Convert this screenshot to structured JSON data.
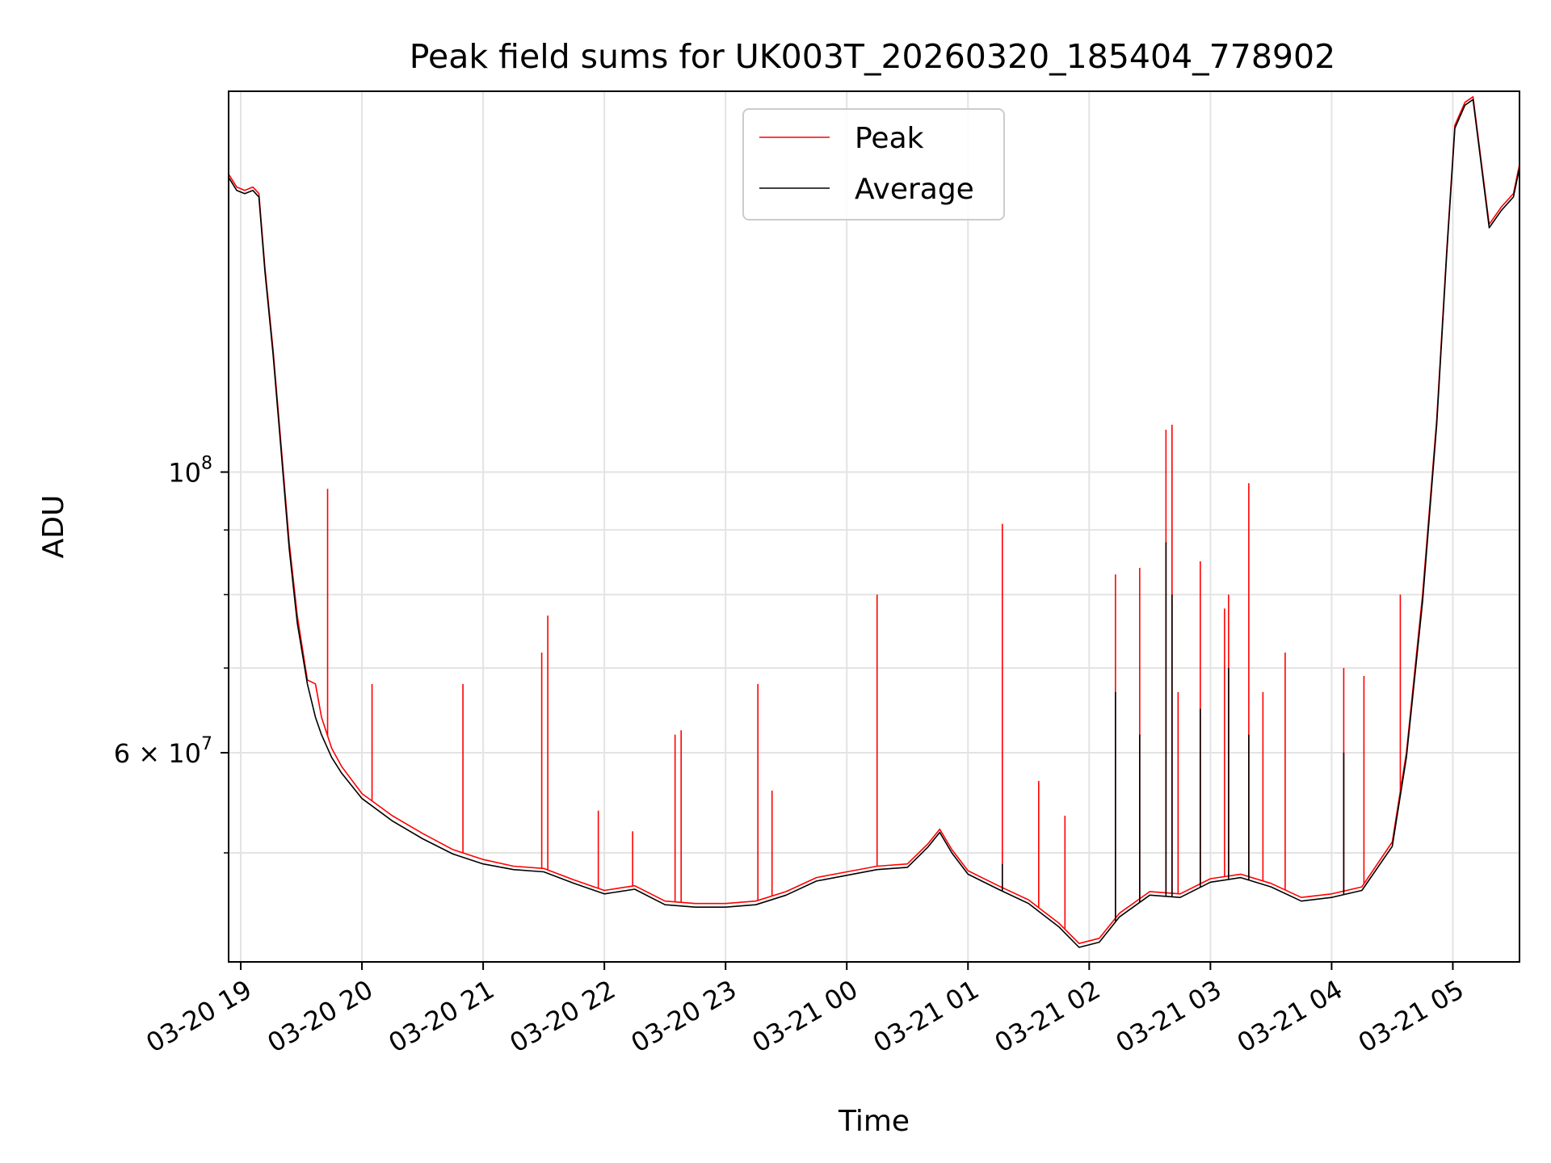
{
  "chart_data": {
    "type": "line",
    "title": "Peak field sums for UK003T_20260320_185404_778902",
    "xlabel": "Time",
    "ylabel": "ADU",
    "y_scale": "log",
    "grid": true,
    "legend_position": "upper center",
    "xlim": [
      "2026-03-20 18:54",
      "2026-03-21 05:33"
    ],
    "ylim": [
      41000000,
      200000000
    ],
    "x_ticks": [
      {
        "t": "2026-03-20 19:00",
        "label": "03-20 19"
      },
      {
        "t": "2026-03-20 20:00",
        "label": "03-20 20"
      },
      {
        "t": "2026-03-20 21:00",
        "label": "03-20 21"
      },
      {
        "t": "2026-03-20 22:00",
        "label": "03-20 22"
      },
      {
        "t": "2026-03-20 23:00",
        "label": "03-20 23"
      },
      {
        "t": "2026-03-21 00:00",
        "label": "03-21 00"
      },
      {
        "t": "2026-03-21 01:00",
        "label": "03-21 01"
      },
      {
        "t": "2026-03-21 02:00",
        "label": "03-21 02"
      },
      {
        "t": "2026-03-21 03:00",
        "label": "03-21 03"
      },
      {
        "t": "2026-03-21 04:00",
        "label": "03-21 04"
      },
      {
        "t": "2026-03-21 05:00",
        "label": "03-21 05"
      }
    ],
    "y_major_ticks": [
      {
        "value": 100000000,
        "base": "10",
        "exp": "8"
      },
      {
        "value": 60000000,
        "base": "6 × 10",
        "exp": "7"
      }
    ],
    "y_minor_ticks": [
      50000000,
      70000000,
      80000000,
      90000000
    ],
    "series": [
      {
        "name": "Peak",
        "color": "#ff0000",
        "points": [
          [
            "2026-03-20 18:54",
            172000000
          ],
          [
            "2026-03-20 18:58",
            168000000
          ],
          [
            "2026-03-20 19:02",
            167000000
          ],
          [
            "2026-03-20 19:06",
            168000000
          ],
          [
            "2026-03-20 19:09",
            166000000
          ],
          [
            "2026-03-20 19:12",
            145000000
          ],
          [
            "2026-03-20 19:16",
            125000000
          ],
          [
            "2026-03-20 19:20",
            105000000
          ],
          [
            "2026-03-20 19:24",
            88000000
          ],
          [
            "2026-03-20 19:28",
            77000000
          ],
          [
            "2026-03-20 19:33",
            68500000
          ],
          [
            "2026-03-20 19:37",
            68000000
          ],
          [
            "2026-03-20 19:40",
            64000000
          ],
          [
            "2026-03-20 19:45",
            60500000
          ],
          [
            "2026-03-20 19:50",
            58500000
          ],
          [
            "2026-03-20 20:00",
            55700000
          ],
          [
            "2026-03-20 20:15",
            53500000
          ],
          [
            "2026-03-20 20:30",
            51800000
          ],
          [
            "2026-03-20 20:45",
            50300000
          ],
          [
            "2026-03-20 21:00",
            49400000
          ],
          [
            "2026-03-20 21:15",
            48800000
          ],
          [
            "2026-03-20 21:30",
            48600000
          ],
          [
            "2026-03-20 21:45",
            47600000
          ],
          [
            "2026-03-20 22:00",
            46700000
          ],
          [
            "2026-03-20 22:15",
            47100000
          ],
          [
            "2026-03-20 22:30",
            45800000
          ],
          [
            "2026-03-20 22:45",
            45600000
          ],
          [
            "2026-03-20 23:00",
            45600000
          ],
          [
            "2026-03-20 23:15",
            45800000
          ],
          [
            "2026-03-20 23:30",
            46600000
          ],
          [
            "2026-03-20 23:45",
            47800000
          ],
          [
            "2026-03-21 00:00",
            48300000
          ],
          [
            "2026-03-21 00:15",
            48800000
          ],
          [
            "2026-03-21 00:30",
            49000000
          ],
          [
            "2026-03-21 00:40",
            50800000
          ],
          [
            "2026-03-21 00:46",
            52200000
          ],
          [
            "2026-03-21 00:52",
            50300000
          ],
          [
            "2026-03-21 01:00",
            48400000
          ],
          [
            "2026-03-21 01:15",
            47100000
          ],
          [
            "2026-03-21 01:30",
            45900000
          ],
          [
            "2026-03-21 01:45",
            44000000
          ],
          [
            "2026-03-21 01:55",
            42400000
          ],
          [
            "2026-03-21 02:05",
            42800000
          ],
          [
            "2026-03-21 02:15",
            44800000
          ],
          [
            "2026-03-21 02:30",
            46600000
          ],
          [
            "2026-03-21 02:45",
            46400000
          ],
          [
            "2026-03-21 03:00",
            47700000
          ],
          [
            "2026-03-21 03:15",
            48100000
          ],
          [
            "2026-03-21 03:30",
            47300000
          ],
          [
            "2026-03-21 03:45",
            46100000
          ],
          [
            "2026-03-21 04:00",
            46400000
          ],
          [
            "2026-03-21 04:15",
            47000000
          ],
          [
            "2026-03-21 04:30",
            51000000
          ],
          [
            "2026-03-21 04:37",
            60000000
          ],
          [
            "2026-03-21 04:45",
            80000000
          ],
          [
            "2026-03-21 04:52",
            110000000
          ],
          [
            "2026-03-21 04:57",
            150000000
          ],
          [
            "2026-03-21 05:01",
            188000000
          ],
          [
            "2026-03-21 05:06",
            196000000
          ],
          [
            "2026-03-21 05:10",
            198000000
          ],
          [
            "2026-03-21 05:18",
            157000000
          ],
          [
            "2026-03-21 05:24",
            162000000
          ],
          [
            "2026-03-21 05:30",
            166000000
          ],
          [
            "2026-03-21 05:33",
            175000000
          ]
        ],
        "spikes": [
          [
            "2026-03-20 19:43",
            97000000
          ],
          [
            "2026-03-20 20:05",
            68000000
          ],
          [
            "2026-03-20 20:50",
            68000000
          ],
          [
            "2026-03-20 21:29",
            72000000
          ],
          [
            "2026-03-20 21:32",
            77000000
          ],
          [
            "2026-03-20 21:57",
            54000000
          ],
          [
            "2026-03-20 22:14",
            52000000
          ],
          [
            "2026-03-20 22:35",
            62000000
          ],
          [
            "2026-03-20 22:38",
            62500000
          ],
          [
            "2026-03-20 23:16",
            68000000
          ],
          [
            "2026-03-20 23:23",
            56000000
          ],
          [
            "2026-03-21 00:15",
            80000000
          ],
          [
            "2026-03-21 01:17",
            91000000
          ],
          [
            "2026-03-21 01:35",
            57000000
          ],
          [
            "2026-03-21 01:48",
            53500000
          ],
          [
            "2026-03-21 02:13",
            83000000
          ],
          [
            "2026-03-21 02:25",
            84000000
          ],
          [
            "2026-03-21 02:38",
            108000000
          ],
          [
            "2026-03-21 02:41",
            109000000
          ],
          [
            "2026-03-21 02:44",
            67000000
          ],
          [
            "2026-03-21 02:55",
            85000000
          ],
          [
            "2026-03-21 03:07",
            78000000
          ],
          [
            "2026-03-21 03:09",
            80000000
          ],
          [
            "2026-03-21 03:19",
            98000000
          ],
          [
            "2026-03-21 03:26",
            67000000
          ],
          [
            "2026-03-21 03:37",
            72000000
          ],
          [
            "2026-03-21 04:06",
            70000000
          ],
          [
            "2026-03-21 04:16",
            69000000
          ],
          [
            "2026-03-21 04:34",
            80000000
          ]
        ]
      },
      {
        "name": "Average",
        "color": "#000000",
        "points": [
          [
            "2026-03-20 18:54",
            171000000
          ],
          [
            "2026-03-20 18:58",
            167000000
          ],
          [
            "2026-03-20 19:02",
            166000000
          ],
          [
            "2026-03-20 19:06",
            167000000
          ],
          [
            "2026-03-20 19:09",
            165000000
          ],
          [
            "2026-03-20 19:12",
            144000000
          ],
          [
            "2026-03-20 19:16",
            124000000
          ],
          [
            "2026-03-20 19:20",
            104000000
          ],
          [
            "2026-03-20 19:24",
            87000000
          ],
          [
            "2026-03-20 19:28",
            76000000
          ],
          [
            "2026-03-20 19:33",
            68000000
          ],
          [
            "2026-03-20 19:37",
            64000000
          ],
          [
            "2026-03-20 19:40",
            62000000
          ],
          [
            "2026-03-20 19:45",
            59500000
          ],
          [
            "2026-03-20 19:50",
            57800000
          ],
          [
            "2026-03-20 20:00",
            55200000
          ],
          [
            "2026-03-20 20:15",
            53000000
          ],
          [
            "2026-03-20 20:30",
            51300000
          ],
          [
            "2026-03-20 20:45",
            49900000
          ],
          [
            "2026-03-20 21:00",
            49000000
          ],
          [
            "2026-03-20 21:15",
            48500000
          ],
          [
            "2026-03-20 21:30",
            48300000
          ],
          [
            "2026-03-20 21:45",
            47300000
          ],
          [
            "2026-03-20 22:00",
            46400000
          ],
          [
            "2026-03-20 22:15",
            46800000
          ],
          [
            "2026-03-20 22:30",
            45500000
          ],
          [
            "2026-03-20 22:45",
            45300000
          ],
          [
            "2026-03-20 23:00",
            45300000
          ],
          [
            "2026-03-20 23:15",
            45500000
          ],
          [
            "2026-03-20 23:30",
            46300000
          ],
          [
            "2026-03-20 23:45",
            47500000
          ],
          [
            "2026-03-21 00:00",
            48000000
          ],
          [
            "2026-03-21 00:15",
            48500000
          ],
          [
            "2026-03-21 00:30",
            48700000
          ],
          [
            "2026-03-21 00:40",
            50500000
          ],
          [
            "2026-03-21 00:46",
            51900000
          ],
          [
            "2026-03-21 00:52",
            50000000
          ],
          [
            "2026-03-21 01:00",
            48100000
          ],
          [
            "2026-03-21 01:15",
            46800000
          ],
          [
            "2026-03-21 01:30",
            45600000
          ],
          [
            "2026-03-21 01:45",
            43700000
          ],
          [
            "2026-03-21 01:55",
            42100000
          ],
          [
            "2026-03-21 02:05",
            42500000
          ],
          [
            "2026-03-21 02:15",
            44500000
          ],
          [
            "2026-03-21 02:30",
            46300000
          ],
          [
            "2026-03-21 02:45",
            46100000
          ],
          [
            "2026-03-21 03:00",
            47400000
          ],
          [
            "2026-03-21 03:15",
            47800000
          ],
          [
            "2026-03-21 03:30",
            47000000
          ],
          [
            "2026-03-21 03:45",
            45800000
          ],
          [
            "2026-03-21 04:00",
            46100000
          ],
          [
            "2026-03-21 04:15",
            46700000
          ],
          [
            "2026-03-21 04:30",
            50600000
          ],
          [
            "2026-03-21 04:37",
            59500000
          ],
          [
            "2026-03-21 04:45",
            79000000
          ],
          [
            "2026-03-21 04:52",
            109000000
          ],
          [
            "2026-03-21 04:57",
            149000000
          ],
          [
            "2026-03-21 05:01",
            187000000
          ],
          [
            "2026-03-21 05:06",
            195000000
          ],
          [
            "2026-03-21 05:10",
            197000000
          ],
          [
            "2026-03-21 05:18",
            156000000
          ],
          [
            "2026-03-21 05:24",
            161000000
          ],
          [
            "2026-03-21 05:30",
            165000000
          ],
          [
            "2026-03-21 05:33",
            174000000
          ]
        ],
        "spikes": [
          [
            "2026-03-21 01:17",
            49000000
          ],
          [
            "2026-03-21 02:13",
            67000000
          ],
          [
            "2026-03-21 02:25",
            62000000
          ],
          [
            "2026-03-21 02:38",
            88000000
          ],
          [
            "2026-03-21 02:41",
            80000000
          ],
          [
            "2026-03-21 02:55",
            65000000
          ],
          [
            "2026-03-21 03:09",
            70000000
          ],
          [
            "2026-03-21 03:19",
            62000000
          ],
          [
            "2026-03-21 04:06",
            60000000
          ]
        ]
      }
    ]
  }
}
